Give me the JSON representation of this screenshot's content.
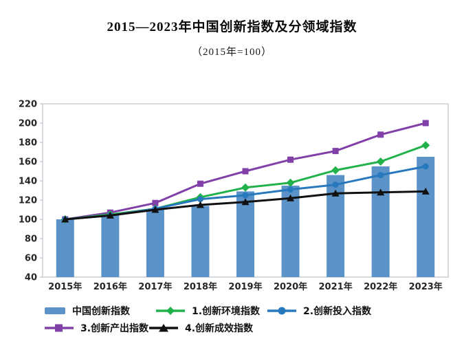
{
  "title": "2015—2023年中国创新指数及分领域指数",
  "subtitle": "（2015年=100）",
  "colors": {
    "axis_text": "#262626",
    "plot_border": "#bcc3ca",
    "background": "#ffffff"
  },
  "chart_data": {
    "type": "combo-bar-line",
    "title": "2015—2023年中国创新指数及分领域指数",
    "subtitle": "（2015年=100）",
    "categories": [
      "2015年",
      "2016年",
      "2017年",
      "2018年",
      "2019年",
      "2020年",
      "2021年",
      "2022年",
      "2023年"
    ],
    "bar_series": {
      "name": "中国创新指数",
      "color": "#5B93C8",
      "values": [
        100,
        105,
        110,
        114,
        129,
        135,
        146,
        155,
        165
      ]
    },
    "line_series": [
      {
        "name": "1.创新环境指数",
        "marker": "diamond",
        "color": "#21B24B",
        "values": [
          100,
          105,
          111,
          123,
          133,
          138,
          151,
          160,
          177
        ]
      },
      {
        "name": "2.创新投入指数",
        "marker": "circle",
        "color": "#2878BE",
        "values": [
          100,
          104,
          111,
          121,
          125,
          131,
          136,
          146,
          155
        ]
      },
      {
        "name": "3.创新产出指数",
        "marker": "square",
        "color": "#8040A8",
        "values": [
          100,
          107,
          117,
          137,
          150,
          162,
          171,
          188,
          200
        ]
      },
      {
        "name": "4.创新成效指数",
        "marker": "triangle",
        "color": "#111111",
        "values": [
          100,
          104,
          110,
          115,
          118,
          122,
          127,
          128,
          129
        ]
      }
    ],
    "ylim": [
      40,
      220
    ],
    "ytick_step": 20,
    "grid": false,
    "legend_position": "bottom"
  }
}
